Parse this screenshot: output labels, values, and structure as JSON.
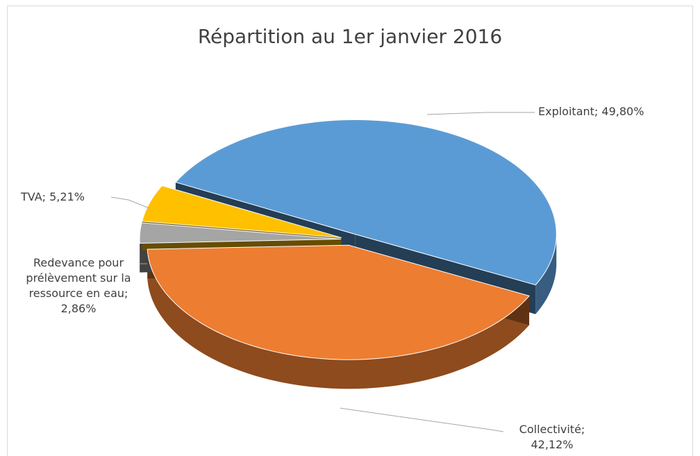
{
  "chart_data": {
    "type": "pie",
    "title": "Répartition au 1er janvier 2016",
    "values": [
      49.8,
      42.12,
      2.86,
      5.21
    ],
    "value_labels": [
      "Exploitant; 49,80%",
      "Collectivité; 42,12%",
      "Redevance pour prélèvement sur la ressource en eau; 2,86%",
      "TVA; 5,21%"
    ],
    "colors": [
      "#5b9bd5",
      "#ed7d31",
      "#a5a5a5",
      "#ffc000"
    ]
  }
}
